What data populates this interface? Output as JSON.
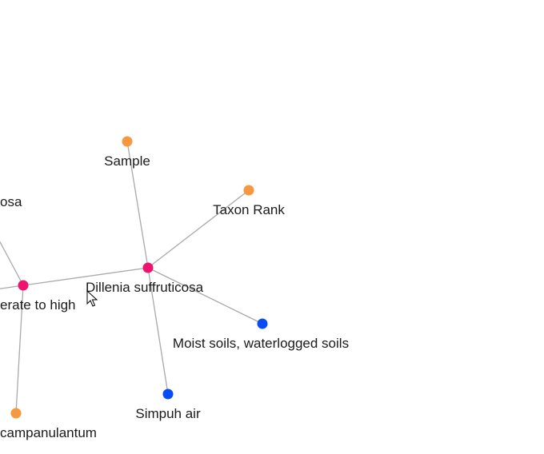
{
  "graph": {
    "colors": {
      "edge": "#a9a9a9",
      "type_taxon": "#f0136e",
      "type_attribute": "#f7973f",
      "type_habitat": "#0b4bf2"
    },
    "nodes": [
      {
        "id": "dillenia",
        "label": "Dillenia suffruticosa",
        "color": "#f0136e"
      },
      {
        "id": "moderate",
        "label": "erate to high",
        "color": "#f0136e"
      },
      {
        "id": "sample",
        "label": "Sample",
        "color": "#f7973f"
      },
      {
        "id": "taxon_rank",
        "label": "Taxon Rank",
        "color": "#f7973f"
      },
      {
        "id": "moist",
        "label": "Moist soils, waterlogged soils",
        "color": "#0b4bf2"
      },
      {
        "id": "simpuh",
        "label": "Simpuh air",
        "color": "#0b4bf2"
      },
      {
        "id": "campanulantum",
        "label": "campanulantum",
        "color": "#f7973f"
      },
      {
        "id": "osa",
        "label": "osa",
        "color": "#f7973f"
      }
    ],
    "edges": [
      {
        "source": "dillenia",
        "target": "sample"
      },
      {
        "source": "dillenia",
        "target": "taxon_rank"
      },
      {
        "source": "dillenia",
        "target": "moist"
      },
      {
        "source": "dillenia",
        "target": "simpuh"
      },
      {
        "source": "dillenia",
        "target": "moderate"
      },
      {
        "source": "moderate",
        "target": "campanulantum"
      },
      {
        "source": "moderate",
        "target": "osa"
      },
      {
        "source": "moderate",
        "target": "offscreen_left"
      }
    ]
  }
}
